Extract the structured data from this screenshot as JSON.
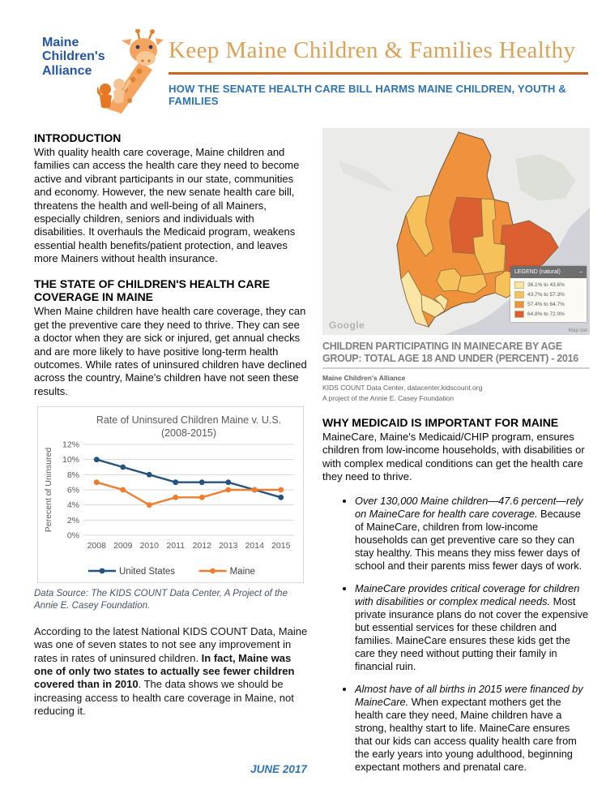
{
  "page": {
    "footer": "JUNE 2017"
  },
  "logo": {
    "line1": "Maine",
    "line2": "Children's",
    "line3": "Alliance"
  },
  "header": {
    "title": "Keep Maine Children & Families Healthy",
    "subtitle": "HOW THE SENATE HEALTH CARE BILL HARMS MAINE CHILDREN, YOUTH & FAMILIES"
  },
  "left": {
    "intro_heading": "INTRODUCTION",
    "intro_body": "With quality health care coverage, Maine children and families can access the health care they need to become active and vibrant participants in our state, communities and economy. However, the new senate health care bill, threatens the health and well-being of all Mainers, especially children, seniors and individuals with disabilities. It overhauls the Medicaid program, weakens essential health benefits/patient protection, and leaves more Mainers without health insurance.",
    "coverage_heading": "THE STATE OF CHILDREN'S HEALTH CARE COVERAGE IN MAINE",
    "coverage_body": "When Maine children have health care coverage, they can get the preventive care they need to thrive. They can see a doctor when they are sick or injured, get annual checks and are more likely to have positive long-term health outcomes. While rates of uninsured children have declined across the country, Maine's children have not seen these results.",
    "source_note": "Data Source: The KIDS COUNT Data Center, A Project of the Annie E. Casey Foundation.",
    "closing_pre": "According to the latest National KIDS COUNT Data, Maine was one of seven states to not see any improvement in rates in rates of uninsured children. ",
    "closing_bold": "In fact, Maine was one of only two states to actually see fewer children covered than in 2010",
    "closing_post": ". The data shows we should be increasing access to health care coverage in Maine, not reducing it."
  },
  "chart_data": {
    "type": "line",
    "title": "Rate of Uninsured Children Maine v. U.S.",
    "subtitle": "(2008-2015)",
    "ylabel": "Perecent of Uninsured",
    "xlabel": "",
    "categories": [
      "2008",
      "2009",
      "2010",
      "2011",
      "2012",
      "2013",
      "2014",
      "2015"
    ],
    "series": [
      {
        "name": "United States",
        "color": "#25537E",
        "values": [
          10,
          9,
          8,
          7,
          7,
          7,
          6,
          5
        ]
      },
      {
        "name": "Maine",
        "color": "#ED7D31",
        "values": [
          7,
          6,
          4,
          5,
          5,
          6,
          6,
          6
        ]
      }
    ],
    "ylim": [
      0,
      12
    ],
    "ytick_step": 2,
    "ytick_suffix": "%",
    "grid": true,
    "legend_position": "bottom"
  },
  "map": {
    "caption": "CHILDREN PARTICIPATING IN MAINECARE BY AGE GROUP: TOTAL AGE 18 AND UNDER (PERCENT) - 2016",
    "sources": [
      "Maine Children's Alliance",
      "KIDS COUNT Data Center, datacenter.kidscount.org",
      "A project of the Annie E. Casey Foundation"
    ],
    "watermark": "Google",
    "map_data_note": "Map dat",
    "legend_title": "LEGEND (natural)",
    "legend_collapse_glyph": "–",
    "legend_items": [
      {
        "label": "36.1% to 43.6%",
        "color": "#FBE5A4"
      },
      {
        "label": "43.7% to 57.3%",
        "color": "#F6C05A"
      },
      {
        "label": "57.4% to 64.7%",
        "color": "#F0923B"
      },
      {
        "label": "64.8% to 72.0%",
        "color": "#DC5F32"
      }
    ]
  },
  "right": {
    "medicaid_heading": "WHY MEDICAID IS IMPORTANT FOR MAINE",
    "medicaid_body": "MaineCare, Maine's Medicaid/CHIP program, ensures children from low-income households, with disabilities or with complex medical conditions can get the health care they need to thrive.",
    "bullets": [
      {
        "lead": "Over 130,000 Maine children—47.6 percent—rely on MaineCare for health care coverage.",
        "rest": " Because of MaineCare, children from low-income households can get preventive care so they can stay healthy. This means they miss fewer days of school and their parents miss fewer days of work."
      },
      {
        "lead": "MaineCare provides critical coverage for children with disabilities or complex medical needs.",
        "rest": " Most private insurance plans do not cover the expensive but essential services for these children and families. MaineCare ensures these kids get the care they need without putting their family in financial ruin."
      },
      {
        "lead": "Almost have of all births in 2015 were financed by MaineCare.",
        "rest": " When expectant mothers get the health care they need, Maine children have a strong, healthy start to life. MaineCare ensures that our kids can access quality health care from the early years into young adulthood, beginning expectant mothers and prenatal care."
      }
    ]
  }
}
